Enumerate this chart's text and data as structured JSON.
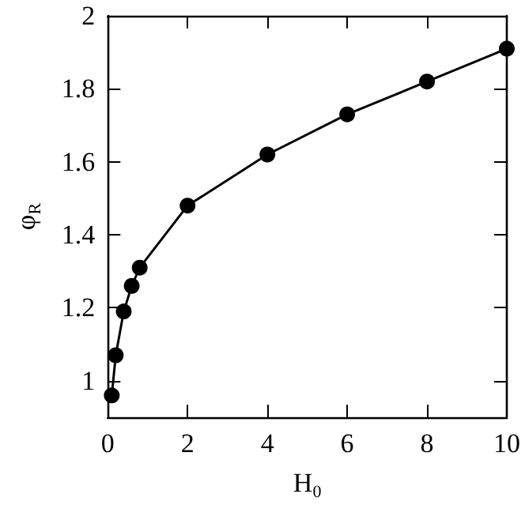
{
  "chart_data": {
    "type": "line",
    "xlabel": "H$_{0}$",
    "ylabel": "φ$_{R}$",
    "x": [
      0.1,
      0.2,
      0.4,
      0.6,
      0.8,
      2,
      4,
      6,
      8,
      10
    ],
    "series": [
      {
        "color": "#000000",
        "values": [
          0.96,
          1.07,
          1.19,
          1.26,
          1.31,
          1.48,
          1.62,
          1.73,
          1.82,
          1.91
        ]
      }
    ],
    "xlim": [
      0,
      10
    ],
    "xticks": [
      0,
      2,
      4,
      6,
      8,
      10
    ],
    "ylim": [
      0.9,
      2
    ],
    "yticks": [
      1,
      1.2,
      1.4,
      1.6,
      1.8,
      2
    ],
    "marker": "circle",
    "line_style": "solid"
  }
}
